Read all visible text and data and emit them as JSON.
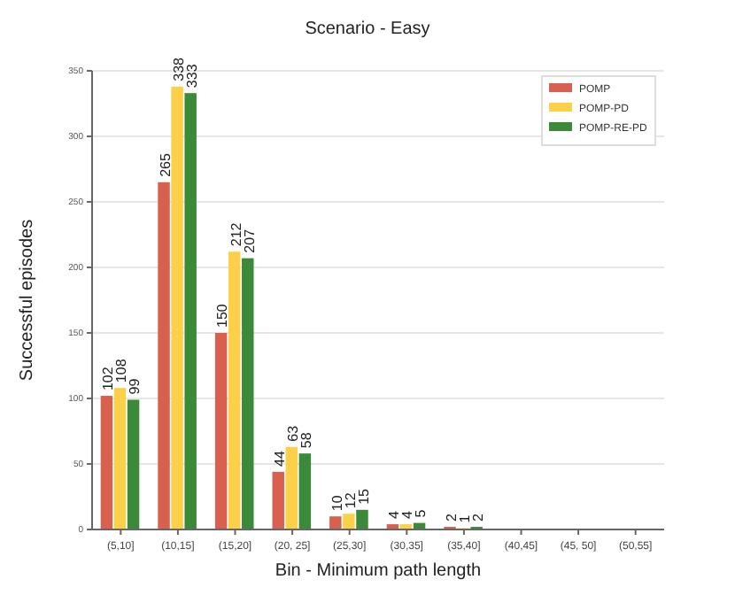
{
  "chart_data": {
    "type": "bar",
    "title": "Scenario - Easy",
    "xlabel": "Bin - Minimum path length",
    "ylabel": "Successful episodes",
    "categories": [
      "(5,10]",
      "(10,15]",
      "(15,20]",
      "(20, 25]",
      "(25,30]",
      "(30,35]",
      "(35,40]",
      "(40,45]",
      "(45, 50]",
      "(50,55]"
    ],
    "series": [
      {
        "name": "POMP",
        "color": "#d9604f",
        "values": [
          102,
          265,
          150,
          44,
          10,
          4,
          2,
          null,
          null,
          null
        ]
      },
      {
        "name": "POMP-PD",
        "color": "#fdd04a",
        "values": [
          108,
          338,
          212,
          63,
          12,
          4,
          1,
          null,
          null,
          null
        ]
      },
      {
        "name": "POMP-RE-PD",
        "color": "#3a8a3a",
        "values": [
          99,
          333,
          207,
          58,
          15,
          5,
          2,
          null,
          null,
          null
        ]
      }
    ],
    "ylim": [
      0,
      350
    ],
    "yticks": [
      0,
      50,
      100,
      150,
      200,
      250,
      300,
      350
    ],
    "grid": "y",
    "legend": "top right",
    "data_labels": true
  }
}
